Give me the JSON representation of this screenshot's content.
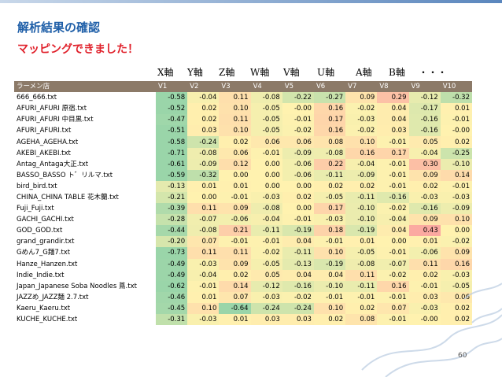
{
  "header": {
    "title": "解析結果の確認",
    "subtitle": "マッピングできました！"
  },
  "axis_labels": [
    "X軸",
    "Y軸",
    "Z軸",
    "W軸",
    "V軸",
    "U軸",
    "A軸",
    "B軸",
    "・・・"
  ],
  "table": {
    "columns": [
      "ラーメン店",
      "V1",
      "V2",
      "V3",
      "V4",
      "V5",
      "V6",
      "V7",
      "V8",
      "V9",
      "V10"
    ],
    "rows": [
      [
        "666_666.txt",
        "-0.58",
        "-0.04",
        "0.11",
        "-0.08",
        "-0.22",
        "-0.27",
        "0.09",
        "0.29",
        "-0.12",
        "-0.32"
      ],
      [
        "AFURI_AFURI 原宿.txt",
        "-0.52",
        "0.02",
        "0.10",
        "-0.05",
        "-0.00",
        "0.16",
        "-0.02",
        "0.04",
        "-0.17",
        "0.01"
      ],
      [
        "AFURI_AFURI 中目黒.txt",
        "-0.47",
        "0.02",
        "0.11",
        "-0.05",
        "-0.01",
        "0.17",
        "-0.03",
        "0.04",
        "-0.16",
        "-0.01"
      ],
      [
        "AFURI_AFURI.txt",
        "-0.51",
        "0.03",
        "0.10",
        "-0.05",
        "-0.02",
        "0.16",
        "-0.02",
        "0.03",
        "-0.16",
        "-0.00"
      ],
      [
        "AGEHA_AGEHA.txt",
        "-0.58",
        "-0.24",
        "0.02",
        "0.06",
        "0.06",
        "0.08",
        "0.10",
        "-0.01",
        "0.05",
        "0.02"
      ],
      [
        "AKEBI_AKEBI.txt",
        "-0.71",
        "-0.08",
        "0.06",
        "-0.01",
        "-0.09",
        "-0.08",
        "0.16",
        "0.17",
        "-0.04",
        "-0.25"
      ],
      [
        "Antag_Antaga大正.txt",
        "-0.61",
        "-0.09",
        "0.12",
        "0.00",
        "-0.06",
        "0.22",
        "-0.04",
        "-0.01",
        "0.30",
        "-0.10"
      ],
      [
        "BASSO_BASSO ト゛リルマ.txt",
        "-0.59",
        "-0.32",
        "0.00",
        "0.00",
        "-0.06",
        "-0.11",
        "-0.09",
        "-0.01",
        "0.09",
        "0.14"
      ],
      [
        "bird_bird.txt",
        "-0.13",
        "0.01",
        "0.01",
        "0.00",
        "0.00",
        "0.02",
        "0.02",
        "-0.01",
        "0.02",
        "-0.01"
      ],
      [
        "CHINA_CHINA TABLE 花木蘭.txt",
        "-0.21",
        "0.00",
        "-0.01",
        "-0.03",
        "0.02",
        "-0.05",
        "-0.11",
        "-0.16",
        "-0.03",
        "-0.03"
      ],
      [
        "Fuji_Fuji.txt",
        "-0.39",
        "0.11",
        "0.09",
        "-0.08",
        "0.00",
        "0.17",
        "-0.10",
        "-0.02",
        "-0.16",
        "-0.09"
      ],
      [
        "GACHI_GACHI.txt",
        "-0.28",
        "-0.07",
        "-0.06",
        "-0.04",
        "-0.01",
        "-0.03",
        "-0.10",
        "-0.04",
        "0.09",
        "0.10"
      ],
      [
        "GOD_GOD.txt",
        "-0.44",
        "-0.08",
        "0.21",
        "-0.11",
        "-0.19",
        "0.18",
        "-0.19",
        "0.04",
        "0.43",
        "0.00"
      ],
      [
        "grand_grandir.txt",
        "-0.20",
        "0.07",
        "-0.01",
        "-0.01",
        "0.04",
        "-0.01",
        "0.01",
        "0.00",
        "0.01",
        "-0.02"
      ],
      [
        "Gめん7_G麺7.txt",
        "-0.73",
        "0.11",
        "0.11",
        "-0.02",
        "-0.11",
        "0.10",
        "-0.05",
        "-0.01",
        "-0.06",
        "0.09"
      ],
      [
        "Hanze_Hanzen.txt",
        "-0.49",
        "-0.03",
        "0.09",
        "-0.05",
        "-0.13",
        "-0.19",
        "-0.08",
        "-0.07",
        "0.11",
        "0.16"
      ],
      [
        "Indie_Indie.txt",
        "-0.49",
        "-0.04",
        "0.02",
        "0.05",
        "0.04",
        "0.04",
        "0.11",
        "-0.02",
        "0.02",
        "-0.03"
      ],
      [
        "Japan_Japanese Soba Noodles 蔦.txt",
        "-0.62",
        "-0.01",
        "0.14",
        "-0.12",
        "-0.16",
        "-0.10",
        "-0.11",
        "0.16",
        "-0.01",
        "-0.05"
      ],
      [
        "JAZZめ_JAZZ麺 2.7.txt",
        "-0.46",
        "0.01",
        "0.07",
        "-0.03",
        "-0.02",
        "-0.01",
        "-0.01",
        "-0.01",
        "0.03",
        "0.06"
      ],
      [
        "Kaeru_Kaeru.txt",
        "-0.45",
        "0.10",
        "-0.64",
        "-0.24",
        "-0.24",
        "0.10",
        "0.02",
        "0.07",
        "-0.03",
        "0.02"
      ],
      [
        "KUCHE_KUCHE.txt",
        "-0.31",
        "-0.03",
        "0.01",
        "0.03",
        "0.03",
        "0.02",
        "0.08",
        "-0.01",
        "-0.00",
        "0.02"
      ]
    ]
  },
  "footer": {
    "page": "60"
  }
}
